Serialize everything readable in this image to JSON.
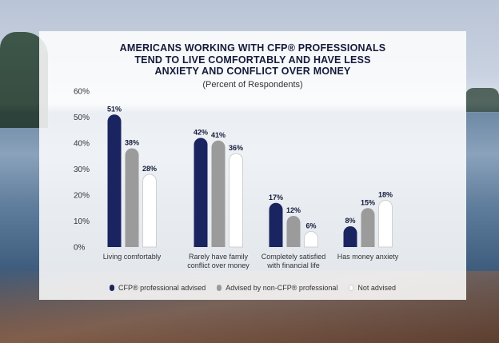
{
  "title_lines": [
    "AMERICANS WORKING WITH CFP® PROFESSIONALS",
    "TEND TO LIVE COMFORTABLY AND HAVE LESS",
    "ANXIETY AND CONFLICT OVER MONEY"
  ],
  "subtitle": "(Percent of Respondents)",
  "colors": {
    "cfp": "#1a2460",
    "non_cfp": "#9b9b9b",
    "not_advised": "#ffffff",
    "not_advised_stroke": "#cfcfcf",
    "text": "#141a3a"
  },
  "chart_data": {
    "type": "bar",
    "title": "AMERICANS WORKING WITH CFP® PROFESSIONALS TEND TO LIVE COMFORTABLY AND HAVE LESS ANXIETY AND CONFLICT OVER MONEY",
    "subtitle": "(Percent of Respondents)",
    "categories": [
      [
        "Living comfortably"
      ],
      [
        "Rarely have family",
        "conflict over money"
      ],
      [
        "Completely satisfied",
        "with financial life"
      ],
      [
        "Has money anxiety"
      ]
    ],
    "series": [
      {
        "name": "CFP® professional advised",
        "values": [
          51,
          42,
          17,
          8
        ]
      },
      {
        "name": "Advised by non-CFP® professional",
        "values": [
          38,
          41,
          12,
          15
        ]
      },
      {
        "name": "Not advised",
        "values": [
          28,
          36,
          6,
          18
        ]
      }
    ],
    "y_ticks": [
      "0%",
      "10%",
      "20%",
      "30%",
      "40%",
      "50%",
      "60%"
    ],
    "ylim": [
      0,
      60
    ],
    "grid": false,
    "legend_position": "bottom"
  }
}
